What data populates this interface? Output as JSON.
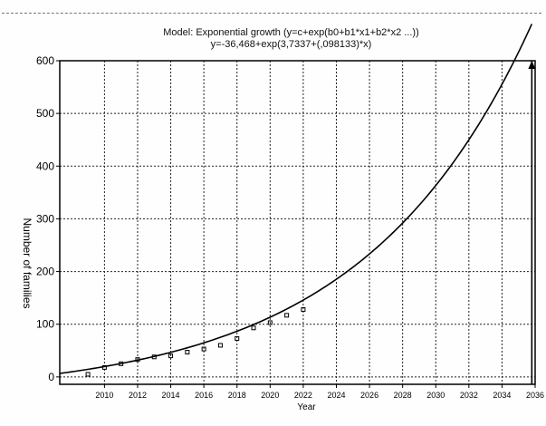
{
  "chart_data": {
    "type": "scatter",
    "title": "Model: Exponential growth (y=c+exp(b0+b1*x1+b2*x2 ...))",
    "subtitle": "y=-36,468+exp(3,7337+(,098133)*x)",
    "xlabel": "Year",
    "ylabel": "Number of families",
    "xlim": [
      2007.3,
      2036
    ],
    "ylim": [
      -14,
      600
    ],
    "x_ticks": [
      2010,
      2012,
      2014,
      2016,
      2018,
      2020,
      2022,
      2024,
      2026,
      2028,
      2030,
      2032,
      2034,
      2036
    ],
    "x_tick_labels": [
      "2010",
      "2012",
      "2014",
      "2016",
      "2018",
      "2020",
      "2022",
      "2024",
      "2026",
      "2028",
      "2030",
      "2032",
      "2034",
      "2036"
    ],
    "y_ticks": [
      0,
      100,
      200,
      300,
      400,
      500,
      600
    ],
    "y_tick_labels": [
      "0",
      "100",
      "200",
      "300",
      "400",
      "500",
      "600"
    ],
    "grid": true,
    "series": [
      {
        "kind": "points",
        "x": [
          2009,
          2010,
          2011,
          2012,
          2013,
          2014,
          2015,
          2016,
          2017,
          2018,
          2019,
          2020,
          2021,
          2022
        ],
        "y": [
          5,
          18,
          25,
          33,
          38,
          40,
          47,
          53,
          60,
          73,
          93,
          103,
          117,
          128
        ]
      },
      {
        "kind": "fitted-curve",
        "fit": {
          "c": -36.468,
          "b0": 3.7337,
          "b1": 0.098133,
          "x_offset": 2007
        },
        "x_start": 2007.3,
        "x_end": 2035.8
      }
    ],
    "marker_line": {
      "x": 2035.8,
      "y": 600
    }
  }
}
